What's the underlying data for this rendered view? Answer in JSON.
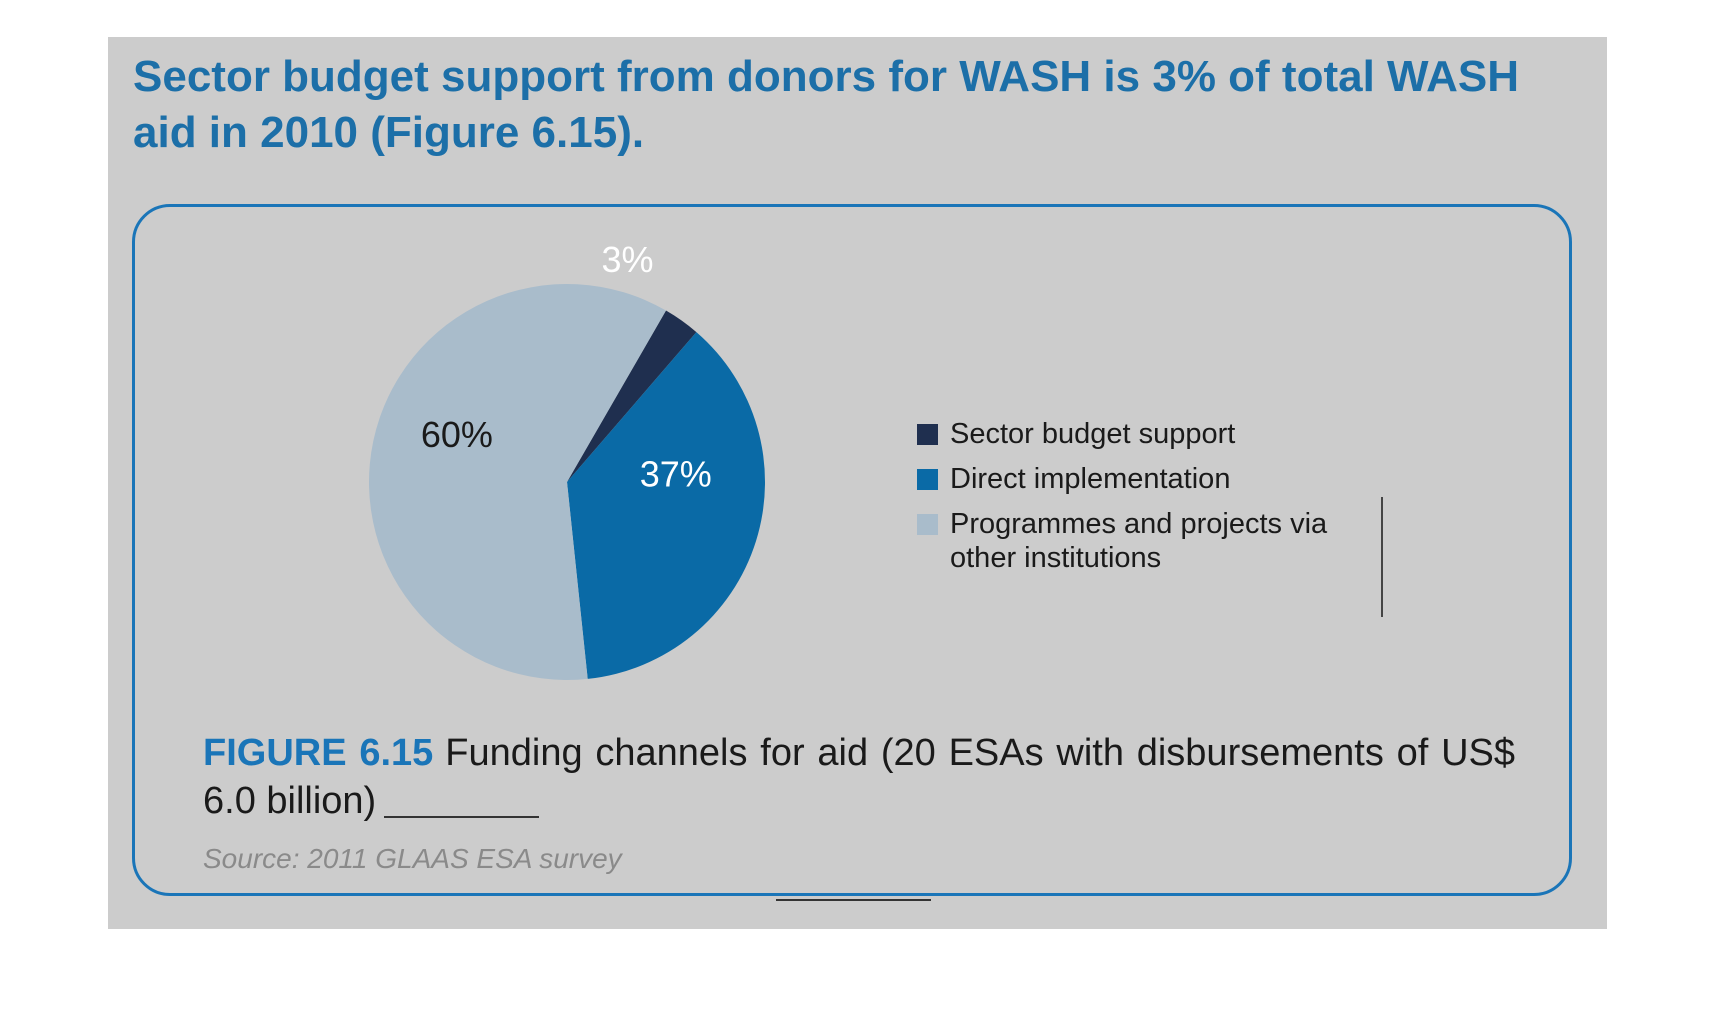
{
  "headline": "Sector budget support from donors for WASH is 3% of total WASH aid in 2010 (Figure 6.15).",
  "chart_data": {
    "type": "pie",
    "slices": [
      {
        "label": "Sector budget support",
        "value": 3,
        "value_label": "3%",
        "color": "#1f2f4f"
      },
      {
        "label": "Direct implementation",
        "value": 37,
        "value_label": "37%",
        "color": "#0a6aa6"
      },
      {
        "label": "Programmes and projects via other institutions",
        "value": 60,
        "value_label": "60%",
        "color": "#a9bccb"
      }
    ],
    "legend_position": "right"
  },
  "figure": {
    "number": "FIGURE 6.15",
    "caption": "Funding channels for aid (20 ESAs with disbursements of US$ 6.0 billion)",
    "source": "Source: 2011 GLAAS ESA survey"
  },
  "colors": {
    "accent": "#1a75b8",
    "panel_background": "#cccccc"
  }
}
